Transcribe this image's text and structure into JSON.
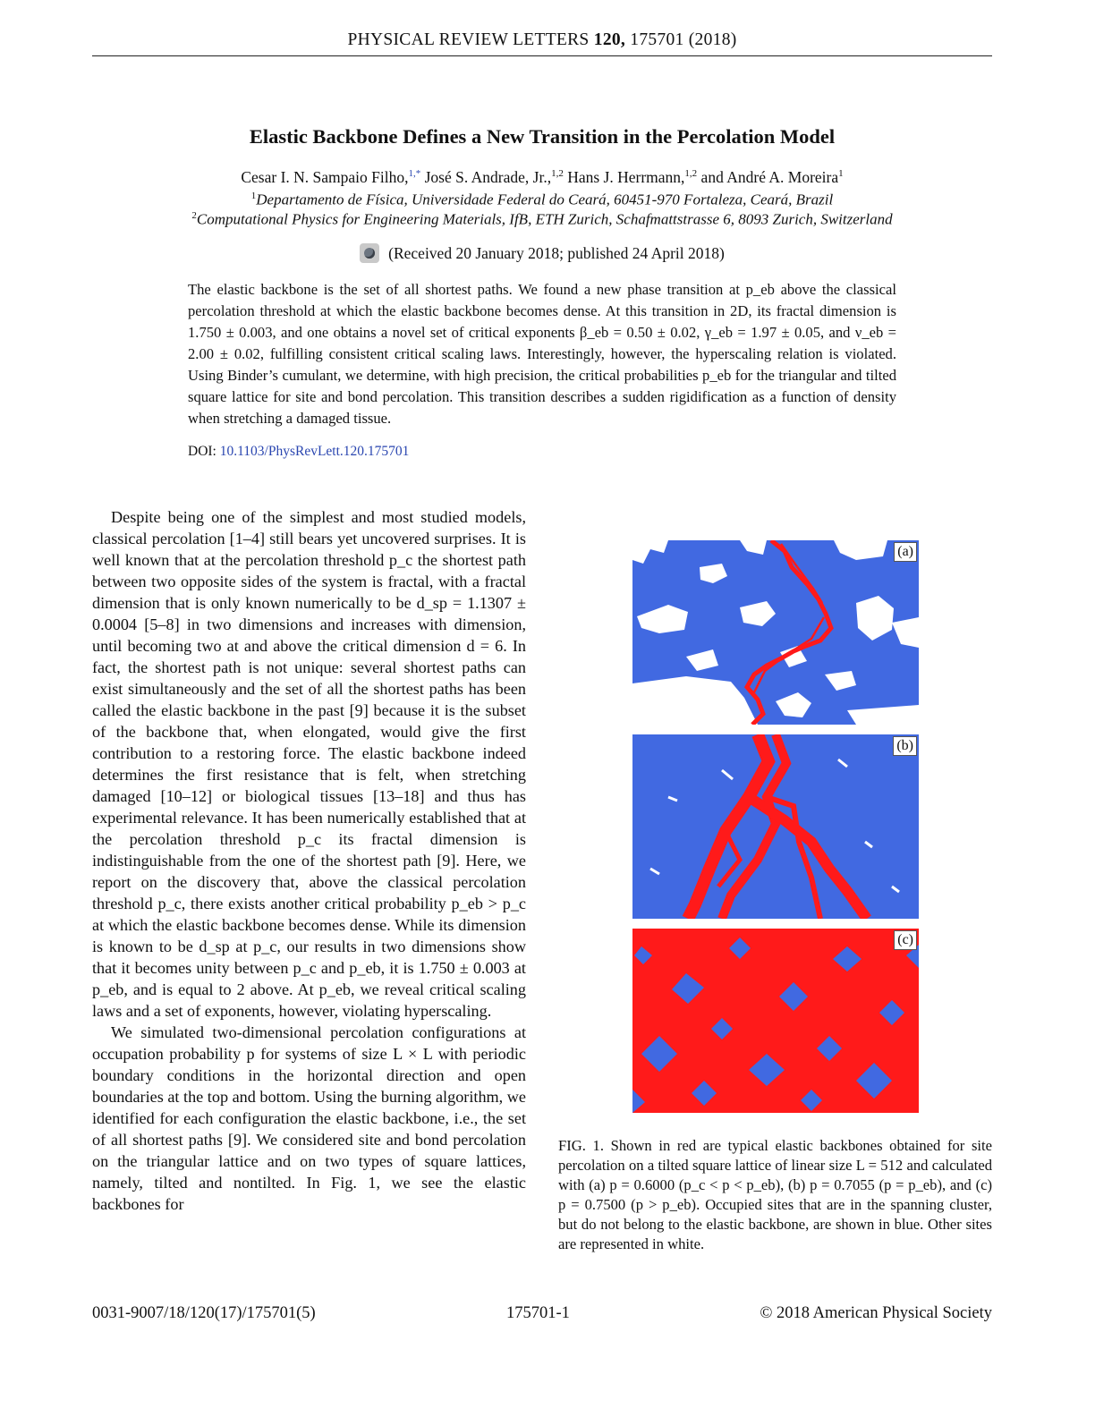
{
  "header": {
    "journal": "PHYSICAL REVIEW LETTERS",
    "volume": "120,",
    "article": "175701 (2018)"
  },
  "title": "Elastic Backbone Defines a New Transition in the Percolation Model",
  "authors": {
    "a1": "Cesar I. N. Sampaio Filho,",
    "a1_sup": "1,*",
    "a2": " José S. Andrade, Jr.,",
    "a2_sup": "1,2",
    "a3": " Hans J. Herrmann,",
    "a3_sup": "1,2",
    "a4": " and André A. Moreira",
    "a4_sup": "1"
  },
  "affiliations": [
    {
      "sup": "1",
      "text": "Departamento de Física, Universidade Federal do Ceará, 60451-970 Fortaleza, Ceará, Brazil"
    },
    {
      "sup": "2",
      "text": "Computational Physics for Engineering Materials, IfB, ETH Zurich, Schafmattstrasse 6, 8093 Zurich, Switzerland"
    }
  ],
  "received": "(Received 20 January 2018; published 24 April 2018)",
  "abstract": "The elastic backbone is the set of all shortest paths. We found a new phase transition at p_eb above the classical percolation threshold at which the elastic backbone becomes dense. At this transition in 2D, its fractal dimension is 1.750 ± 0.003, and one obtains a novel set of critical exponents β_eb = 0.50 ± 0.02, γ_eb = 1.97 ± 0.05, and ν_eb = 2.00 ± 0.02, fulfilling consistent critical scaling laws. Interestingly, however, the hyperscaling relation is violated. Using Binder’s cumulant, we determine, with high precision, the critical probabilities p_eb for the triangular and tilted square lattice for site and bond percolation. This transition describes a sudden rigidification as a function of density when stretching a damaged tissue.",
  "doi": {
    "label": "DOI:",
    "value": "10.1103/PhysRevLett.120.175701"
  },
  "body": {
    "p1": "Despite being one of the simplest and most studied models, classical percolation [1–4] still bears yet uncovered surprises. It is well known that at the percolation threshold p_c the shortest path between two opposite sides of the system is fractal, with a fractal dimension that is only known numerically to be d_sp = 1.1307 ± 0.0004 [5–8] in two dimensions and increases with dimension, until becoming two at and above the critical dimension d = 6. In fact, the shortest path is not unique: several shortest paths can exist simultaneously and the set of all the shortest paths has been called the elastic backbone in the past [9] because it is the subset of the backbone that, when elongated, would give the first contribution to a restoring force. The elastic backbone indeed determines the first resistance that is felt, when stretching damaged [10–12] or biological tissues [13–18] and thus has experimental relevance. It has been numerically established that at the percolation threshold p_c its fractal dimension is indistinguishable from the one of the shortest path [9]. Here, we report on the discovery that, above the classical percolation threshold p_c, there exists another critical probability p_eb > p_c at which the elastic backbone becomes dense. While its dimension is known to be d_sp at p_c, our results in two dimensions show that it becomes unity between p_c and p_eb, it is 1.750 ± 0.003 at p_eb, and is equal to 2 above. At p_eb, we reveal critical scaling laws and a set of exponents, however, violating hyperscaling.",
    "p2": "We simulated two-dimensional percolation configurations at occupation probability p for systems of size L × L with periodic boundary conditions in the horizontal direction and open boundaries at the top and bottom. Using the burning algorithm, we identified for each configuration the elastic backbone, i.e., the set of all shortest paths [9]. We considered site and bond percolation on the triangular lattice and on two types of square lattices, namely, tilted and nontilted. In Fig. 1, we see the elastic backbones for"
  },
  "figure": {
    "panel_labels": [
      "(a)",
      "(b)",
      "(c)"
    ],
    "colors": {
      "backbone": "#ff1a1a",
      "cluster": "#4169e1",
      "empty": "#ffffff"
    }
  },
  "caption": "FIG. 1.   Shown in red are typical elastic backbones obtained for site percolation on a tilted square lattice of linear size L = 512 and calculated with (a) p = 0.6000 (p_c < p < p_eb), (b) p = 0.7055 (p = p_eb), and (c) p = 0.7500 (p > p_eb). Occupied sites that are in the spanning cluster, but do not belong to the elastic backbone, are shown in blue. Other sites are represented in white.",
  "footer": {
    "left": "0031-9007/18/120(17)/175701(5)",
    "center": "175701-1",
    "right": "© 2018 American Physical Society"
  }
}
